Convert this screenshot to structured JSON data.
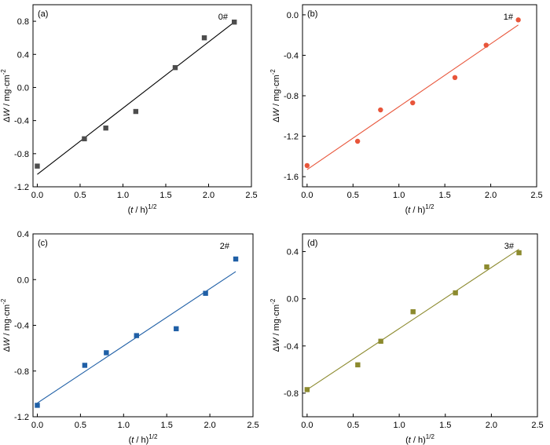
{
  "chart_data": [
    {
      "type": "scatter",
      "panel": "(a)",
      "sample": "0#",
      "xlabel_var": "t",
      "xlabel_unit": "h",
      "xlabel_exp": "1/2",
      "ylabel_delta": "Δ",
      "ylabel_var": "W",
      "ylabel_unit": "mg·cm",
      "ylabel_exp": "-2",
      "xlim": [
        -0.05,
        2.5
      ],
      "ylim": [
        -1.2,
        1.0
      ],
      "xticks": [
        "0.0",
        "0.5",
        "1.0",
        "1.5",
        "2.0",
        "2.5"
      ],
      "yticks": [
        "-1.2",
        "-0.8",
        "-0.4",
        "0.0",
        "0.4",
        "0.8"
      ],
      "color": "#4d4d4d",
      "line_color": "#000000",
      "marker": "square",
      "x": [
        0.0,
        0.55,
        0.8,
        1.15,
        1.61,
        1.95,
        2.3
      ],
      "y": [
        -0.95,
        -0.62,
        -0.49,
        -0.29,
        0.24,
        0.6,
        0.79
      ],
      "fit": [
        [
          0.0,
          -1.05
        ],
        [
          2.3,
          0.79
        ]
      ]
    },
    {
      "type": "scatter",
      "panel": "(b)",
      "sample": "1#",
      "xlabel_var": "t",
      "xlabel_unit": "h",
      "xlabel_exp": "1/2",
      "ylabel_delta": "Δ",
      "ylabel_var": "W",
      "ylabel_unit": "mg·cm",
      "ylabel_exp": "-2",
      "xlim": [
        -0.05,
        2.5
      ],
      "ylim": [
        -1.7,
        0.1
      ],
      "xticks": [
        "0.0",
        "0.5",
        "1.0",
        "1.5",
        "2.0",
        "2.5"
      ],
      "yticks": [
        "-1.6",
        "-1.2",
        "-0.8",
        "-0.4",
        "0.0"
      ],
      "color": "#e8553a",
      "line_color": "#e8553a",
      "marker": "circle",
      "x": [
        0.0,
        0.55,
        0.8,
        1.15,
        1.61,
        1.95,
        2.3
      ],
      "y": [
        -1.49,
        -1.25,
        -0.94,
        -0.87,
        -0.62,
        -0.3,
        -0.05
      ],
      "fit": [
        [
          0.0,
          -1.53
        ],
        [
          2.3,
          -0.1
        ]
      ]
    },
    {
      "type": "scatter",
      "panel": "(c)",
      "sample": "2#",
      "xlabel_var": "t",
      "xlabel_unit": "h",
      "xlabel_exp": "1/2",
      "ylabel_delta": "Δ",
      "ylabel_var": "W",
      "ylabel_unit": "mg·cm",
      "ylabel_exp": "-2",
      "xlim": [
        -0.05,
        2.5
      ],
      "ylim": [
        -1.2,
        0.4
      ],
      "xticks": [
        "0.0",
        "0.5",
        "1.0",
        "1.5",
        "2.0",
        "2.5"
      ],
      "yticks": [
        "-1.2",
        "-0.8",
        "-0.4",
        "0.0",
        "0.4"
      ],
      "color": "#1f5fa6",
      "line_color": "#1f5fa6",
      "marker": "square",
      "x": [
        0.0,
        0.55,
        0.8,
        1.15,
        1.61,
        1.95,
        2.3
      ],
      "y": [
        -1.1,
        -0.75,
        -0.64,
        -0.49,
        -0.43,
        -0.12,
        0.18
      ],
      "fit": [
        [
          0.0,
          -1.08
        ],
        [
          2.3,
          0.07
        ]
      ]
    },
    {
      "type": "scatter",
      "panel": "(d)",
      "sample": "3#",
      "xlabel_var": "t",
      "xlabel_unit": "h",
      "xlabel_exp": "1/2",
      "ylabel_delta": "Δ",
      "ylabel_var": "W",
      "ylabel_unit": "mg·cm",
      "ylabel_exp": "-2",
      "xlim": [
        -0.05,
        2.5
      ],
      "ylim": [
        -1.0,
        0.55
      ],
      "xticks": [
        "0.0",
        "0.5",
        "1.0",
        "1.5",
        "2.0",
        "2.5"
      ],
      "yticks": [
        "-0.8",
        "-0.4",
        "0.0",
        "0.4"
      ],
      "color": "#8c8a2e",
      "line_color": "#8c8a2e",
      "marker": "square",
      "x": [
        0.0,
        0.55,
        0.8,
        1.15,
        1.61,
        1.95,
        2.3
      ],
      "y": [
        -0.77,
        -0.56,
        -0.36,
        -0.11,
        0.05,
        0.27,
        0.39
      ],
      "fit": [
        [
          0.0,
          -0.77
        ],
        [
          2.3,
          0.42
        ]
      ]
    }
  ]
}
